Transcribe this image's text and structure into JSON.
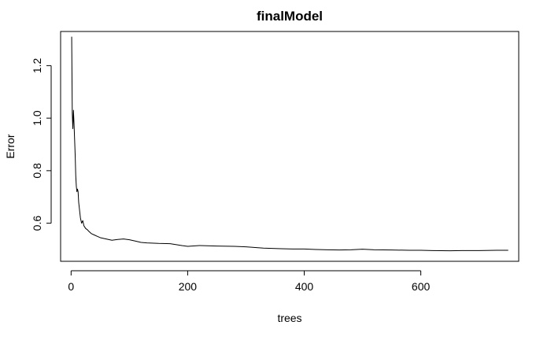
{
  "chart_data": {
    "type": "line",
    "title": "finalModel",
    "xlabel": "trees",
    "ylabel": "Error",
    "xlim": [
      -18,
      768
    ],
    "ylim": [
      0.455,
      1.33
    ],
    "x_ticks": [
      0,
      200,
      400,
      600
    ],
    "x_tick_labels": [
      "0",
      "200",
      "400",
      "600"
    ],
    "y_ticks": [
      0.6,
      0.8,
      1.0,
      1.2
    ],
    "y_tick_labels": [
      "0.6",
      "0.8",
      "1.0",
      "1.2"
    ],
    "grid": false,
    "legend": "none",
    "line_color": "#000000",
    "series": [
      {
        "x": [
          1,
          2,
          3,
          4,
          5,
          6,
          7,
          8,
          9,
          10,
          11,
          12,
          13,
          14,
          15,
          16,
          17,
          18,
          20,
          22,
          25,
          28,
          30,
          35,
          40,
          45,
          50,
          60,
          70,
          80,
          90,
          100,
          110,
          120,
          130,
          150,
          170,
          190,
          200,
          220,
          250,
          280,
          300,
          330,
          360,
          380,
          400,
          420,
          440,
          460,
          480,
          500,
          520,
          550,
          580,
          600,
          620,
          650,
          670,
          700,
          730,
          750
        ],
        "y": [
          1.31,
          1.02,
          0.96,
          1.03,
          0.98,
          0.92,
          0.86,
          0.78,
          0.74,
          0.72,
          0.73,
          0.72,
          0.68,
          0.66,
          0.64,
          0.62,
          0.61,
          0.6,
          0.61,
          0.59,
          0.58,
          0.575,
          0.57,
          0.56,
          0.555,
          0.55,
          0.545,
          0.54,
          0.535,
          0.538,
          0.54,
          0.537,
          0.532,
          0.527,
          0.525,
          0.523,
          0.522,
          0.515,
          0.512,
          0.515,
          0.513,
          0.512,
          0.51,
          0.505,
          0.503,
          0.502,
          0.502,
          0.5,
          0.499,
          0.498,
          0.499,
          0.501,
          0.499,
          0.498,
          0.497,
          0.497,
          0.496,
          0.495,
          0.496,
          0.496,
          0.497,
          0.497
        ]
      }
    ]
  }
}
